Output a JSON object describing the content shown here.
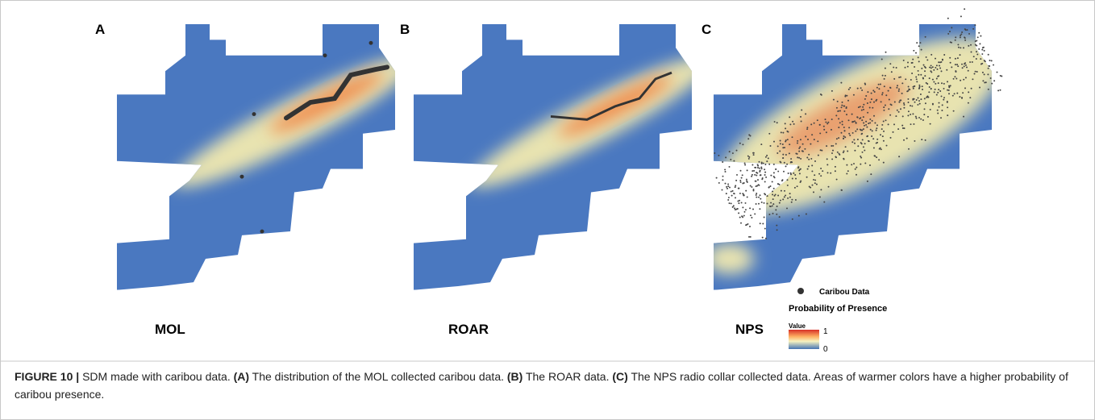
{
  "panels": [
    {
      "letter": "A",
      "label": "MOL"
    },
    {
      "letter": "B",
      "label": "ROAR"
    },
    {
      "letter": "C",
      "label": "NPS"
    }
  ],
  "legend": {
    "points": "Caribou Data",
    "title": "Probability of Presence",
    "scale_title": "Value",
    "max": 1,
    "min": 0
  },
  "caption": {
    "label": "FIGURE 10 |",
    "intro": "SDM made with caribou data.",
    "parts": [
      {
        "tag": "(A)",
        "text": "The distribution of the MOL collected caribou data."
      },
      {
        "tag": "(B)",
        "text": "The ROAR data."
      },
      {
        "tag": "(C)",
        "text": "The NPS radio collar collected data."
      }
    ],
    "outro": "Areas of warmer colors have a higher probability of caribou presence."
  }
}
